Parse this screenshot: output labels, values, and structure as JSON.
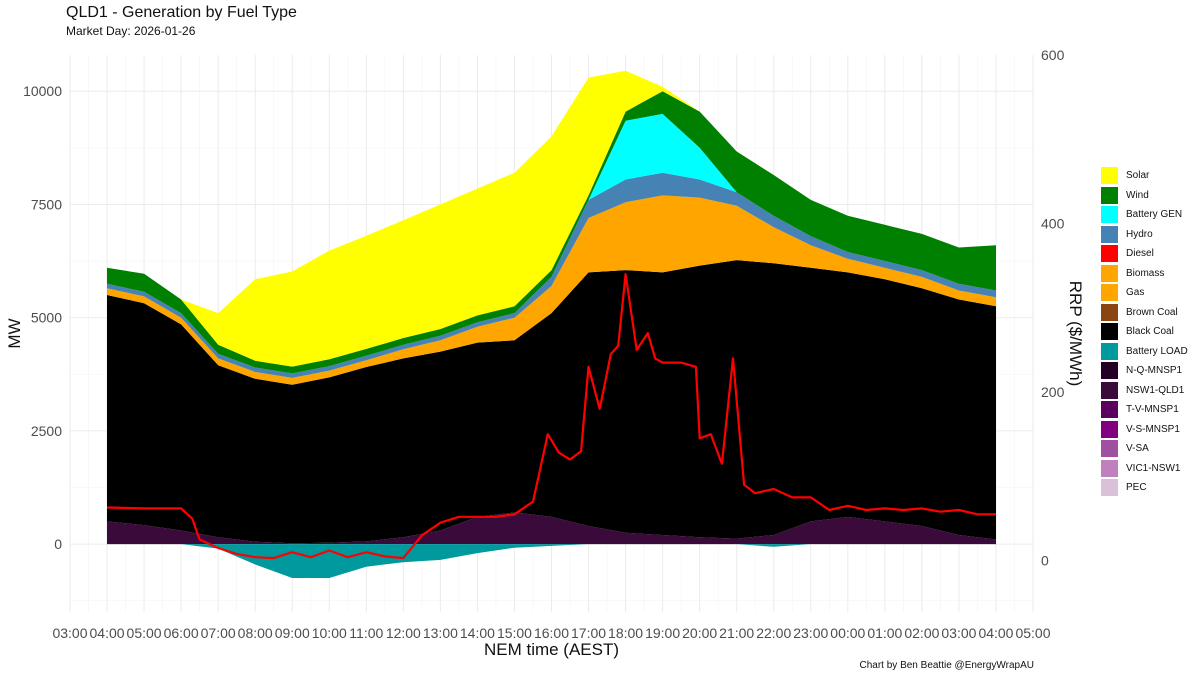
{
  "title": "QLD1 - Generation by Fuel Type",
  "subtitle": "Market Day: 2026-01-26",
  "caption": "Chart by Ben Beattie @EnergyWrapAU",
  "chart_data": {
    "type": "area",
    "xlabel": "NEM time (AEST)",
    "ylabel": "MW",
    "y2label": "RRP ($/MWh)",
    "xticks": [
      "03:00",
      "04:00",
      "05:00",
      "06:00",
      "07:00",
      "08:00",
      "09:00",
      "10:00",
      "11:00",
      "12:00",
      "13:00",
      "14:00",
      "15:00",
      "16:00",
      "17:00",
      "18:00",
      "19:00",
      "20:00",
      "21:00",
      "22:00",
      "23:00",
      "00:00",
      "01:00",
      "02:00",
      "03:00",
      "04:00",
      "05:00"
    ],
    "xlim": [
      3,
      29
    ],
    "ylim": [
      -1500,
      10800
    ],
    "yticks": [
      0,
      2500,
      5000,
      7500,
      10000
    ],
    "y2lim": [
      -61,
      600
    ],
    "y2ticks": [
      0,
      200,
      400,
      600
    ],
    "grid": true,
    "legend_position": "right",
    "x": [
      4,
      5,
      6,
      7,
      8,
      9,
      10,
      11,
      12,
      13,
      14,
      15,
      16,
      17,
      18,
      19,
      20,
      21,
      22,
      23,
      24,
      25,
      26,
      27,
      28
    ],
    "series": [
      {
        "name": "PEC",
        "color": "#d9c2d9",
        "values": [
          0,
          0,
          0,
          0,
          0,
          0,
          0,
          0,
          0,
          0,
          0,
          0,
          0,
          0,
          0,
          0,
          0,
          0,
          0,
          0,
          0,
          0,
          0,
          0,
          0
        ]
      },
      {
        "name": "VIC1-NSW1",
        "color": "#c080c0",
        "values": [
          0,
          0,
          0,
          0,
          0,
          0,
          0,
          0,
          0,
          0,
          0,
          0,
          0,
          0,
          0,
          0,
          0,
          0,
          0,
          0,
          0,
          0,
          0,
          0,
          0
        ]
      },
      {
        "name": "V-SA",
        "color": "#a050a0",
        "values": [
          0,
          0,
          0,
          0,
          0,
          0,
          0,
          0,
          0,
          0,
          0,
          0,
          0,
          0,
          0,
          0,
          0,
          0,
          0,
          0,
          0,
          0,
          0,
          0,
          0
        ]
      },
      {
        "name": "V-S-MNSP1",
        "color": "#800080",
        "values": [
          0,
          0,
          0,
          0,
          0,
          0,
          0,
          0,
          0,
          0,
          0,
          0,
          0,
          0,
          0,
          0,
          0,
          0,
          0,
          0,
          0,
          0,
          0,
          0,
          0
        ]
      },
      {
        "name": "T-V-MNSP1",
        "color": "#5a0060",
        "values": [
          0,
          0,
          0,
          0,
          0,
          0,
          0,
          0,
          0,
          0,
          0,
          0,
          0,
          0,
          0,
          0,
          0,
          0,
          0,
          0,
          0,
          0,
          0,
          0,
          0
        ]
      },
      {
        "name": "NSW1-QLD1",
        "color": "#3a0a3a",
        "values": [
          500,
          420,
          300,
          150,
          50,
          20,
          30,
          60,
          150,
          300,
          600,
          700,
          600,
          400,
          250,
          200,
          150,
          120,
          200,
          500,
          600,
          500,
          400,
          200,
          100
        ]
      },
      {
        "name": "N-Q-MNSP1",
        "color": "#250025",
        "values": [
          0,
          0,
          0,
          0,
          0,
          0,
          0,
          0,
          0,
          0,
          0,
          0,
          0,
          0,
          0,
          0,
          0,
          0,
          0,
          0,
          0,
          0,
          0,
          0,
          0
        ]
      },
      {
        "name": "Black Coal",
        "color": "#000000",
        "values": [
          5000,
          4900,
          4550,
          3800,
          3600,
          3500,
          3650,
          3850,
          3950,
          3950,
          3850,
          3800,
          4500,
          5600,
          5800,
          5800,
          6000,
          6150,
          6000,
          5600,
          5400,
          5350,
          5250,
          5200,
          5150
        ]
      },
      {
        "name": "Brown Coal",
        "color": "#8b4513",
        "values": [
          0,
          0,
          0,
          0,
          0,
          0,
          0,
          0,
          0,
          0,
          0,
          0,
          0,
          0,
          0,
          0,
          0,
          0,
          0,
          0,
          0,
          0,
          0,
          0,
          0
        ]
      },
      {
        "name": "Gas",
        "color": "#ffa500",
        "values": [
          150,
          150,
          150,
          150,
          150,
          150,
          150,
          150,
          200,
          250,
          350,
          500,
          600,
          1200,
          1500,
          1700,
          1500,
          1200,
          800,
          500,
          300,
          250,
          250,
          200,
          200
        ]
      },
      {
        "name": "Biomass",
        "color": "#ffa500",
        "values": [
          0,
          0,
          0,
          0,
          0,
          0,
          0,
          0,
          0,
          0,
          0,
          0,
          0,
          0,
          0,
          0,
          0,
          0,
          0,
          0,
          0,
          0,
          0,
          0,
          0
        ]
      },
      {
        "name": "Diesel",
        "color": "#ff0000",
        "values": [
          0,
          0,
          0,
          0,
          0,
          0,
          0,
          0,
          0,
          0,
          0,
          0,
          0,
          0,
          0,
          0,
          0,
          0,
          0,
          0,
          0,
          0,
          0,
          0,
          0
        ]
      },
      {
        "name": "Hydro",
        "color": "#4682b4",
        "values": [
          100,
          100,
          100,
          100,
          100,
          100,
          100,
          100,
          100,
          100,
          100,
          100,
          200,
          400,
          500,
          500,
          400,
          300,
          250,
          200,
          150,
          150,
          150,
          150,
          150
        ]
      },
      {
        "name": "Battery GEN",
        "color": "#00ffff",
        "values": [
          0,
          0,
          0,
          0,
          0,
          0,
          0,
          0,
          0,
          0,
          0,
          0,
          0,
          0,
          1300,
          1300,
          700,
          0,
          0,
          0,
          0,
          0,
          0,
          0,
          0
        ]
      },
      {
        "name": "Wind",
        "color": "#008000",
        "values": [
          350,
          400,
          300,
          200,
          150,
          150,
          150,
          150,
          150,
          150,
          150,
          150,
          150,
          100,
          200,
          500,
          800,
          900,
          900,
          800,
          800,
          800,
          800,
          800,
          1000
        ]
      },
      {
        "name": "Solar",
        "color": "#ffff00",
        "values": [
          0,
          0,
          0,
          700,
          1800,
          2100,
          2400,
          2500,
          2600,
          2750,
          2800,
          2950,
          2950,
          2600,
          900,
          100,
          0,
          0,
          0,
          0,
          0,
          0,
          0,
          0,
          0
        ]
      },
      {
        "name": "Battery LOAD",
        "color": "#00999d",
        "values": [
          0,
          0,
          0,
          -100,
          -450,
          -750,
          -750,
          -500,
          -400,
          -350,
          -200,
          -80,
          -40,
          0,
          0,
          0,
          0,
          0,
          -60,
          0,
          0,
          0,
          0,
          0,
          0
        ]
      }
    ],
    "price": {
      "name": "RRP",
      "color": "#ff0000",
      "x": [
        4,
        5,
        6,
        6.3,
        6.5,
        7,
        7.5,
        8,
        8.5,
        9,
        9.5,
        10,
        10.5,
        11,
        11.5,
        12,
        12.5,
        13,
        13.5,
        14,
        14.5,
        15,
        15.5,
        15.9,
        16.2,
        16.5,
        16.8,
        17,
        17.3,
        17.6,
        17.8,
        18,
        18.3,
        18.6,
        18.8,
        19,
        19.5,
        19.9,
        20,
        20.3,
        20.6,
        20.9,
        21.2,
        21.5,
        22,
        22.5,
        23,
        23.5,
        24,
        24.5,
        25,
        25.5,
        26,
        26.5,
        27,
        27.5,
        27.8,
        28
      ],
      "values": [
        63,
        62,
        62,
        50,
        25,
        15,
        8,
        4,
        3,
        10,
        4,
        12,
        4,
        10,
        5,
        3,
        30,
        45,
        52,
        52,
        52,
        55,
        70,
        150,
        128,
        120,
        130,
        230,
        180,
        245,
        255,
        340,
        250,
        270,
        240,
        235,
        235,
        230,
        145,
        150,
        115,
        240,
        90,
        80,
        85,
        75,
        75,
        60,
        65,
        60,
        62,
        60,
        62,
        58,
        60,
        55,
        55,
        55
      ]
    }
  }
}
